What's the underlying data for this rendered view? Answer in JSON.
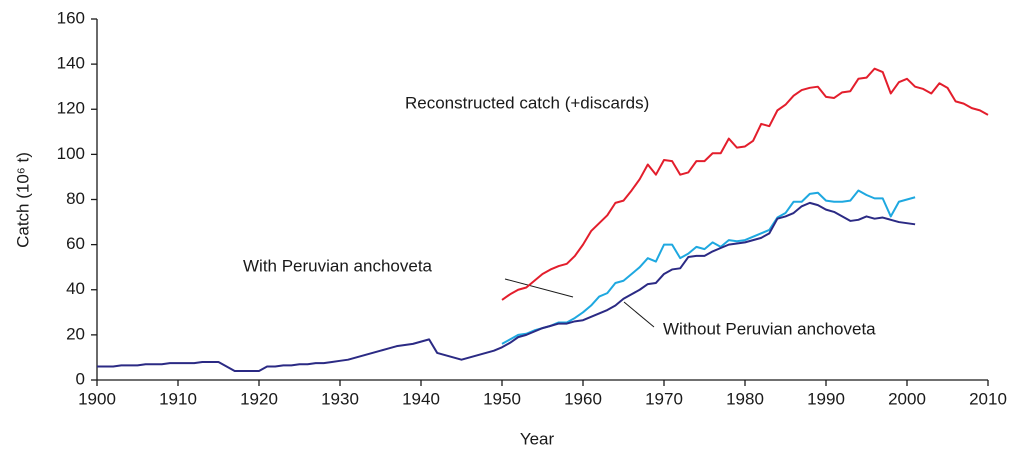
{
  "chart_data": {
    "type": "line",
    "xlabel": "Year",
    "ylabel": "Catch (10⁶ t)",
    "xlim": [
      1900,
      2010
    ],
    "xticks": [
      1900,
      1910,
      1920,
      1930,
      1940,
      1950,
      1960,
      1970,
      1980,
      1990,
      2000,
      2010
    ],
    "ylim": [
      0,
      160
    ],
    "yticks": [
      0,
      20,
      40,
      60,
      80,
      100,
      120,
      140,
      160
    ],
    "series": [
      {
        "name": "With Peruvian anchoveta",
        "color": "#1ea8e0",
        "x": [
          1950,
          1951,
          1952,
          1953,
          1954,
          1955,
          1956,
          1957,
          1958,
          1959,
          1960,
          1961,
          1962,
          1963,
          1964,
          1965,
          1966,
          1967,
          1968,
          1969,
          1970,
          1971,
          1972,
          1973,
          1974,
          1975,
          1976,
          1977,
          1978,
          1979,
          1980,
          1981,
          1982,
          1983,
          1984,
          1985,
          1986,
          1987,
          1988,
          1989,
          1990,
          1991,
          1992,
          1993,
          1994,
          1995,
          1996,
          1997,
          1998,
          1999,
          2000,
          2001
        ],
        "values": [
          16,
          18,
          20,
          20.5,
          22,
          23,
          24,
          25.5,
          25.5,
          27.5,
          30,
          33,
          37,
          38.5,
          43,
          44,
          47,
          50,
          54,
          52.5,
          60,
          60,
          54,
          56,
          59,
          58,
          61,
          59,
          62,
          61.5,
          62,
          63.5,
          65,
          66.5,
          72,
          74,
          79,
          79,
          82.5,
          83,
          79.5,
          79,
          79,
          79.5,
          84,
          82,
          80.5,
          80.5,
          72.5,
          79,
          80,
          81
        ]
      },
      {
        "name": "Without Peruvian anchoveta",
        "color": "#2b2a84",
        "x": [
          1900,
          1901,
          1902,
          1903,
          1904,
          1905,
          1906,
          1907,
          1908,
          1909,
          1910,
          1911,
          1912,
          1913,
          1914,
          1915,
          1916,
          1917,
          1918,
          1919,
          1920,
          1921,
          1922,
          1923,
          1924,
          1925,
          1926,
          1927,
          1928,
          1929,
          1930,
          1931,
          1932,
          1933,
          1934,
          1935,
          1936,
          1937,
          1938,
          1939,
          1940,
          1941,
          1942,
          1943,
          1944,
          1945,
          1946,
          1947,
          1948,
          1949,
          1950,
          1951,
          1952,
          1953,
          1954,
          1955,
          1956,
          1957,
          1958,
          1959,
          1960,
          1961,
          1962,
          1963,
          1964,
          1965,
          1966,
          1967,
          1968,
          1969,
          1970,
          1971,
          1972,
          1973,
          1974,
          1975,
          1976,
          1977,
          1978,
          1979,
          1980,
          1981,
          1982,
          1983,
          1984,
          1985,
          1986,
          1987,
          1988,
          1989,
          1990,
          1991,
          1992,
          1993,
          1994,
          1995,
          1996,
          1997,
          1998,
          1999,
          2000,
          2001
        ],
        "values": [
          6,
          6,
          6,
          6.5,
          6.5,
          6.5,
          7,
          7,
          7,
          7.5,
          7.5,
          7.5,
          7.5,
          8,
          8,
          8,
          6,
          4,
          4,
          4,
          4,
          6,
          6,
          6.5,
          6.5,
          7,
          7,
          7.5,
          7.5,
          8,
          8.5,
          9,
          10,
          11,
          12,
          13,
          14,
          15,
          15.5,
          16,
          17,
          18,
          12,
          11,
          10,
          9,
          10,
          11,
          12,
          13,
          14.5,
          16.5,
          19,
          20,
          21.5,
          23,
          24,
          25,
          25,
          26,
          26.5,
          28,
          29.5,
          31,
          33,
          36,
          38,
          40,
          42.5,
          43,
          47,
          49,
          49.5,
          54.5,
          55,
          55,
          57,
          58.5,
          60,
          60.5,
          61,
          62,
          63,
          65,
          71.5,
          72.5,
          74,
          77,
          78.5,
          77.5,
          75.5,
          74.5,
          72.5,
          70.5,
          71,
          72.5,
          71.5,
          72,
          71,
          70,
          69.5,
          69
        ]
      },
      {
        "name": "Reconstructed catch (+discards)",
        "color": "#e31e2c",
        "x": [
          1950,
          1951,
          1952,
          1953,
          1954,
          1955,
          1956,
          1957,
          1958,
          1959,
          1960,
          1961,
          1962,
          1963,
          1964,
          1965,
          1966,
          1967,
          1968,
          1969,
          1970,
          1971,
          1972,
          1973,
          1974,
          1975,
          1976,
          1977,
          1978,
          1979,
          1980,
          1981,
          1982,
          1983,
          1984,
          1985,
          1986,
          1987,
          1988,
          1989,
          1990,
          1991,
          1992,
          1993,
          1994,
          1995,
          1996,
          1997,
          1998,
          1999,
          2000,
          2001,
          2002,
          2003,
          2004,
          2005,
          2006,
          2007,
          2008,
          2009,
          2010
        ],
        "values": [
          35.5,
          38,
          40,
          41,
          44,
          47,
          49,
          50.5,
          51.5,
          55,
          60,
          66,
          69.5,
          73,
          78.5,
          79.5,
          84,
          89,
          95.5,
          91,
          97.5,
          97,
          91,
          92,
          97,
          97,
          100.5,
          100.5,
          107,
          103,
          103.5,
          106,
          113.5,
          112.5,
          119.5,
          122,
          126,
          128.5,
          129.5,
          130,
          125.5,
          125,
          127.5,
          128,
          133.5,
          134,
          138,
          136.5,
          127,
          132,
          133.5,
          130,
          129,
          127,
          131.5,
          129.5,
          123.5,
          122.5,
          120.5,
          119.5,
          117.5
        ]
      }
    ]
  }
}
